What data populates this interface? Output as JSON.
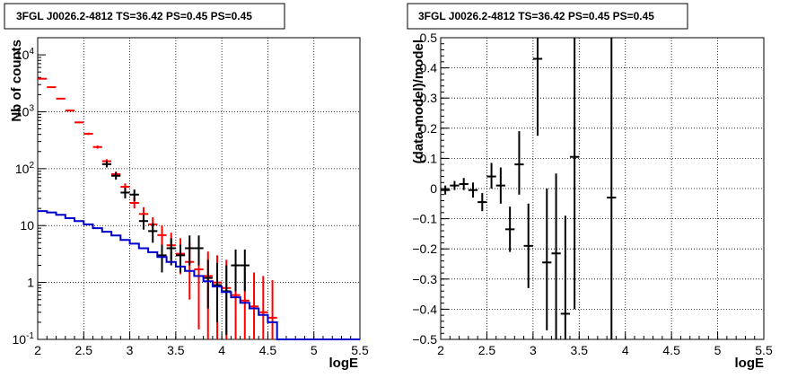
{
  "chart_data": [
    {
      "type": "scatter",
      "title": "3FGL J0026.2-4812 TS=36.42 PS=0.45 PS=0.45",
      "xlabel": "logE",
      "ylabel": "Nb of counts",
      "xlim": [
        2,
        5.5
      ],
      "ylim": [
        0.1,
        20000
      ],
      "yscale": "log",
      "grid": true,
      "x_ticks": [
        2,
        2.5,
        3,
        3.5,
        4,
        4.5,
        5,
        5.5
      ],
      "x_tick_labels": [
        "2",
        "2.5",
        "3",
        "3.5",
        "4",
        "4.5",
        "5",
        "5.5"
      ],
      "y_ticks": [
        0.1,
        1,
        10,
        100,
        1000,
        10000
      ],
      "y_tick_labels": [
        "10^-1",
        "1",
        "10",
        "10^2",
        "10^3",
        "10^4"
      ],
      "bin_width": 0.1,
      "series": [
        {
          "color": "#ff0000",
          "style": "errorbar",
          "x": [
            2.05,
            2.15,
            2.25,
            2.35,
            2.45,
            2.55,
            2.65,
            2.75,
            2.85,
            2.95,
            3.05,
            3.15,
            3.25,
            3.35,
            3.45,
            3.55,
            3.65,
            3.75,
            3.85,
            3.95,
            4.05,
            4.15,
            4.25,
            4.35,
            4.45,
            4.55
          ],
          "y": [
            3800,
            2700,
            1700,
            1050,
            650,
            410,
            240,
            135,
            80,
            48,
            25,
            16,
            10.5,
            6.8,
            4.5,
            3.2,
            2.3,
            1.7,
            1.3,
            1.0,
            0.8,
            0.6,
            0.48,
            0.38,
            0.3,
            0.24
          ],
          "y_low": [
            3740,
            2650,
            1660,
            1020,
            630,
            390,
            225,
            123,
            71,
            41,
            20,
            12,
            7.4,
            4.2,
            2.5,
            1.4,
            0.5,
            0.15,
            0.1,
            0.1,
            0.1,
            0.1,
            0.1,
            0.1,
            0.1,
            0.1
          ],
          "y_high": [
            3860,
            2750,
            1740,
            1080,
            670,
            430,
            255,
            147,
            89,
            55,
            31,
            21,
            14,
            10,
            7.5,
            6,
            5,
            4,
            3.5,
            3,
            2.5,
            2,
            1.8,
            1.5,
            1.3,
            1.1
          ]
        },
        {
          "color": "#000000",
          "style": "errorbar",
          "x": [
            2.75,
            2.85,
            2.95,
            3.05,
            3.15,
            3.25,
            3.35,
            3.45,
            3.55,
            3.65,
            3.75,
            3.85,
            3.95,
            4.05,
            4.15,
            4.25
          ],
          "y": [
            120,
            75,
            38,
            35,
            12,
            8,
            3,
            4,
            3,
            4,
            4,
            1.2,
            0.9,
            0.7,
            2,
            2
          ],
          "y_low": [
            105,
            64,
            30,
            27,
            8.5,
            5,
            1.5,
            2,
            1.5,
            2,
            2,
            0.35,
            0.2,
            0.12,
            0.7,
            0.7
          ],
          "y_high": [
            135,
            86,
            46,
            43,
            15.5,
            11,
            4.6,
            6,
            4.6,
            6.7,
            6.7,
            2.5,
            2.2,
            2.0,
            3.8,
            3.8
          ]
        },
        {
          "color": "#0000cc",
          "style": "step",
          "x": [
            2.05,
            2.15,
            2.25,
            2.35,
            2.45,
            2.55,
            2.65,
            2.75,
            2.85,
            2.95,
            3.05,
            3.15,
            3.25,
            3.35,
            3.45,
            3.55,
            3.65,
            3.75,
            3.85,
            3.95,
            4.05,
            4.15,
            4.25,
            4.35,
            4.45,
            4.55,
            4.65,
            4.75,
            4.85,
            4.95,
            5.05,
            5.15,
            5.25,
            5.35,
            5.45
          ],
          "y": [
            18,
            17,
            15.5,
            13.5,
            12,
            10.5,
            9,
            7.8,
            6.7,
            5.6,
            4.8,
            4.0,
            3.4,
            2.8,
            2.3,
            1.9,
            1.6,
            1.3,
            1.05,
            0.85,
            0.68,
            0.55,
            0.44,
            0.35,
            0.27,
            0.2,
            0.1,
            0.1,
            0.1,
            0.1,
            0.1,
            0.1,
            0.1,
            0.1,
            0.1
          ]
        }
      ]
    },
    {
      "type": "scatter",
      "title": "3FGL J0026.2-4812 TS=36.42 PS=0.45 PS=0.45",
      "xlabel": "logE",
      "ylabel": "(data-model)/model",
      "xlim": [
        2,
        5.5
      ],
      "ylim": [
        -0.5,
        0.5
      ],
      "grid": true,
      "x_ticks": [
        2,
        2.5,
        3,
        3.5,
        4,
        4.5,
        5,
        5.5
      ],
      "x_tick_labels": [
        "2",
        "2.5",
        "3",
        "3.5",
        "4",
        "4.5",
        "5",
        "5.5"
      ],
      "y_ticks": [
        -0.5,
        -0.4,
        -0.3,
        -0.2,
        -0.1,
        0,
        0.1,
        0.2,
        0.3,
        0.4,
        0.5
      ],
      "y_tick_labels": [
        "−0.5",
        "−0.4",
        "−0.3",
        "−0.2",
        "−0.1",
        "0",
        "0.1",
        "0.2",
        "0.3",
        "0.4",
        "0.5"
      ],
      "bin_width": 0.1,
      "series": [
        {
          "color": "#000000",
          "style": "errorbar",
          "x": [
            2.05,
            2.15,
            2.25,
            2.35,
            2.45,
            2.55,
            2.65,
            2.75,
            2.85,
            2.95,
            3.05,
            3.15,
            3.25,
            3.35,
            3.45,
            3.85
          ],
          "y": [
            -0.005,
            0.01,
            0.015,
            -0.005,
            -0.045,
            0.04,
            0.01,
            -0.135,
            0.08,
            -0.19,
            0.43,
            -0.245,
            -0.215,
            -0.415,
            0.105,
            -0.03
          ],
          "y_low": [
            -0.02,
            -0.005,
            -0.005,
            -0.03,
            -0.075,
            0.0,
            -0.05,
            -0.21,
            -0.02,
            -0.33,
            0.175,
            -0.47,
            -0.5,
            -0.5,
            -0.4,
            -0.5
          ],
          "y_high": [
            0.01,
            0.025,
            0.035,
            0.02,
            -0.015,
            0.085,
            0.07,
            -0.06,
            0.19,
            -0.05,
            0.5,
            0.0,
            0.05,
            -0.09,
            0.5,
            0.5
          ]
        }
      ]
    }
  ]
}
